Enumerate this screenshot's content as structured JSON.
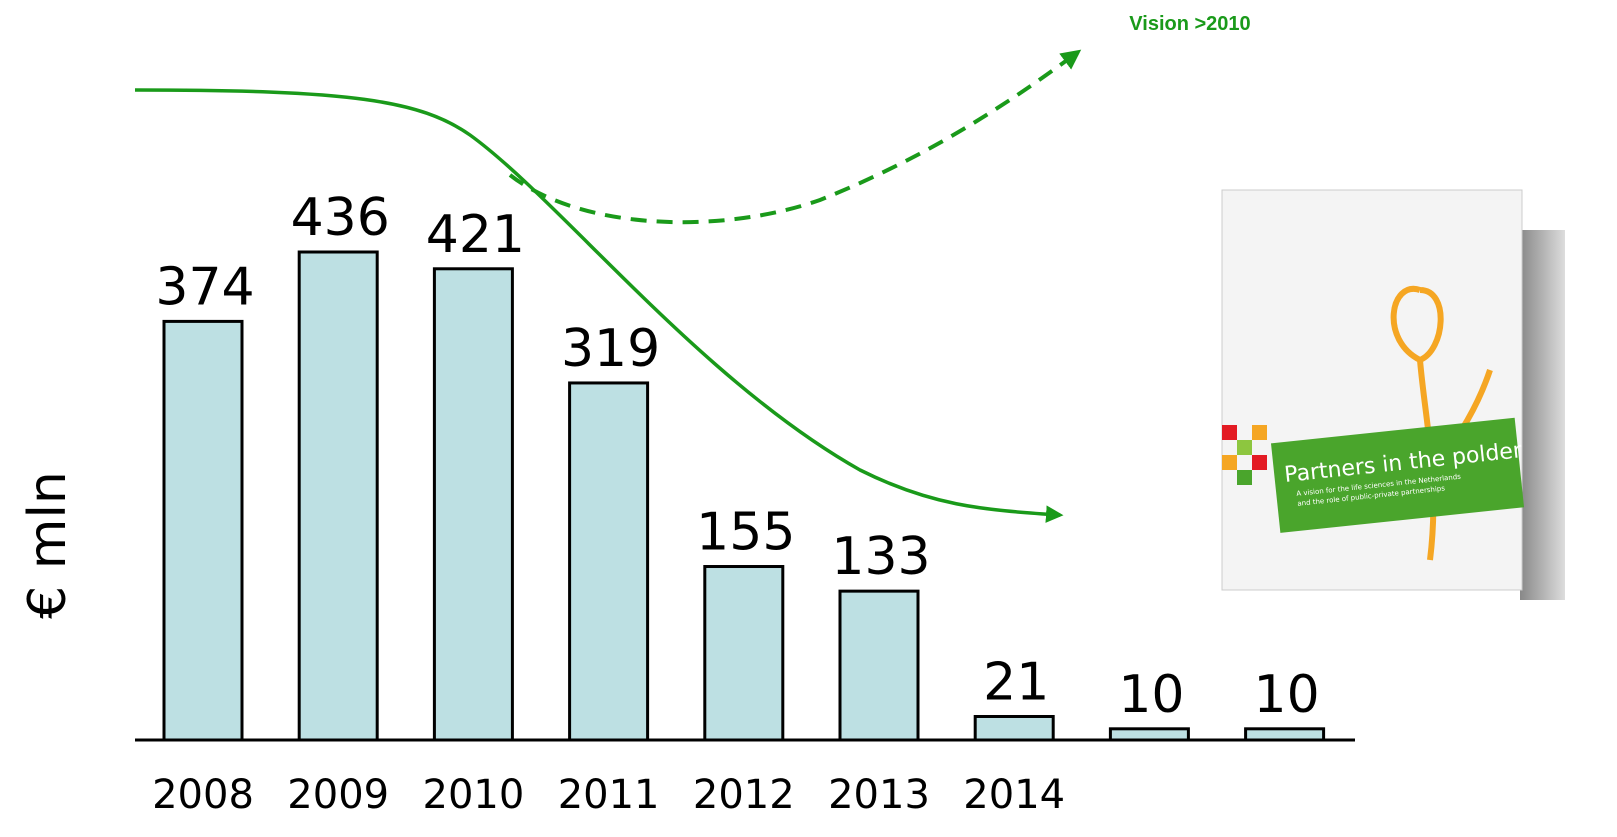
{
  "chart_data": {
    "type": "bar",
    "categories": [
      "2008",
      "2009",
      "2010",
      "2011",
      "2012",
      "2013",
      "2014",
      null,
      null
    ],
    "values": [
      374,
      436,
      421,
      319,
      155,
      133,
      21,
      10,
      10
    ],
    "color": "#bde0e3",
    "y_label": "€ mln",
    "annotation": "Vision >2010"
  },
  "book": {
    "title": "Partners in the polder",
    "subtitle": [
      "A vision for the life sciences in the Netherlands",
      "and the role of public-private partnerships"
    ]
  }
}
